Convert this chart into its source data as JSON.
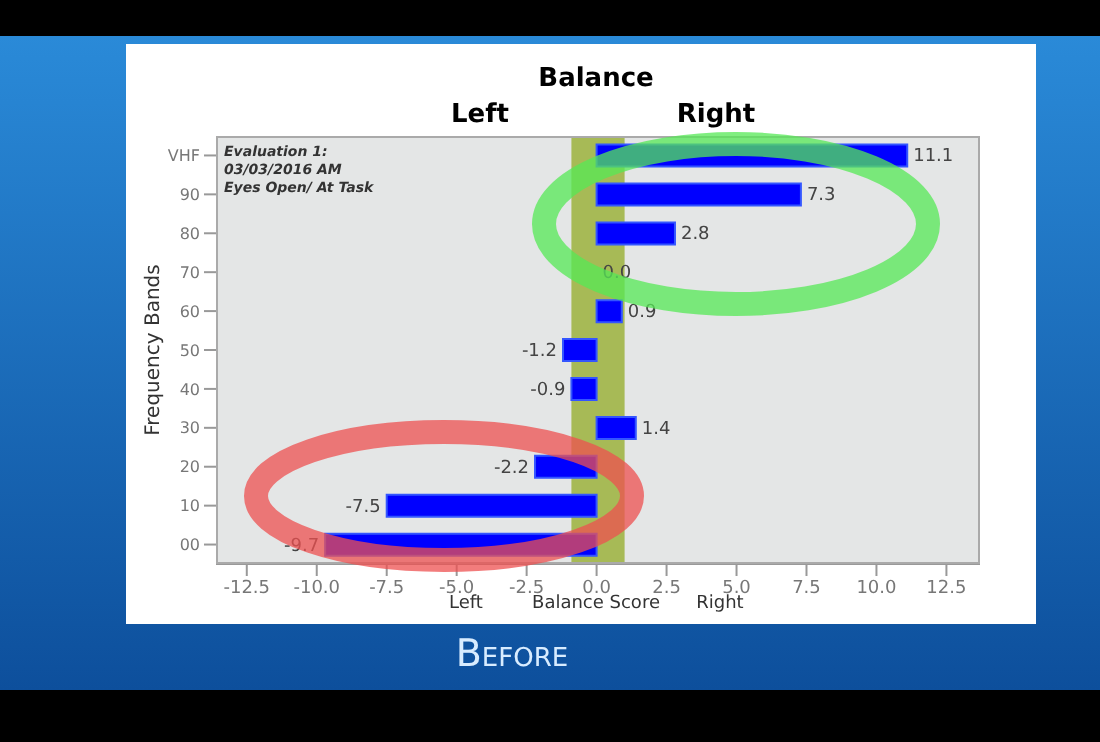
{
  "chart_data": {
    "type": "bar",
    "orientation": "horizontal",
    "title": "Balance",
    "xlabel": "Balance Score",
    "ylabel": "Frequency Bands",
    "categories": [
      "VHF",
      "90",
      "80",
      "70",
      "60",
      "50",
      "40",
      "30",
      "20",
      "10",
      "00"
    ],
    "values": [
      11.1,
      7.3,
      2.8,
      0.0,
      0.9,
      -1.2,
      -0.9,
      1.4,
      -2.2,
      -7.5,
      -9.7
    ],
    "color": "#0000ff",
    "value_labels": [
      "11.1",
      "7.3",
      "2.8",
      "0.0",
      "0.9",
      "-1.2",
      "-0.9",
      "1.4",
      "-2.2",
      "-7.5",
      "-9.7"
    ],
    "xlim": [
      -13.6,
      13.7
    ],
    "xticks": [
      -12.5,
      {
        "value": -10,
        "label": "-10.0"
      },
      -7.5,
      {
        "value": -5,
        "label": "-5.0"
      },
      -2.5,
      {
        "value": 0,
        "label": "0.0"
      },
      2.5,
      {
        "value": 5,
        "label": "5.0"
      },
      7.5,
      {
        "value": 10,
        "label": "10.0"
      },
      12.5
    ],
    "bands": [
      {
        "axis": "x",
        "from": -0.9,
        "to": 1.0,
        "color": "#9cb23c"
      }
    ],
    "annotations": [
      "Left",
      "Right",
      "Left",
      "Right",
      "Evaluation 1:\n03/03/2016 AM\nEyes Open/ At Task",
      "Before"
    ],
    "grid": false
  }
}
